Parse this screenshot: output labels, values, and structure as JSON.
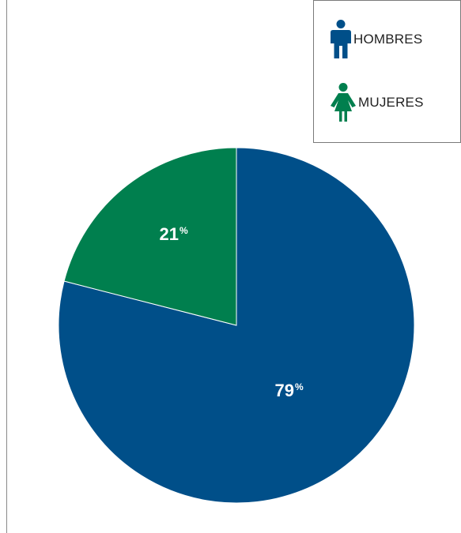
{
  "chart_data": {
    "type": "pie",
    "series": [
      {
        "name": "HOMBRES",
        "value": 79,
        "label": "79",
        "color": "#004f89",
        "icon": "man-icon"
      },
      {
        "name": "MUJERES",
        "value": 21,
        "label": "21",
        "color": "#007f4e",
        "icon": "woman-icon"
      }
    ],
    "percent_sign": "%",
    "legend_placement": "top-right"
  }
}
